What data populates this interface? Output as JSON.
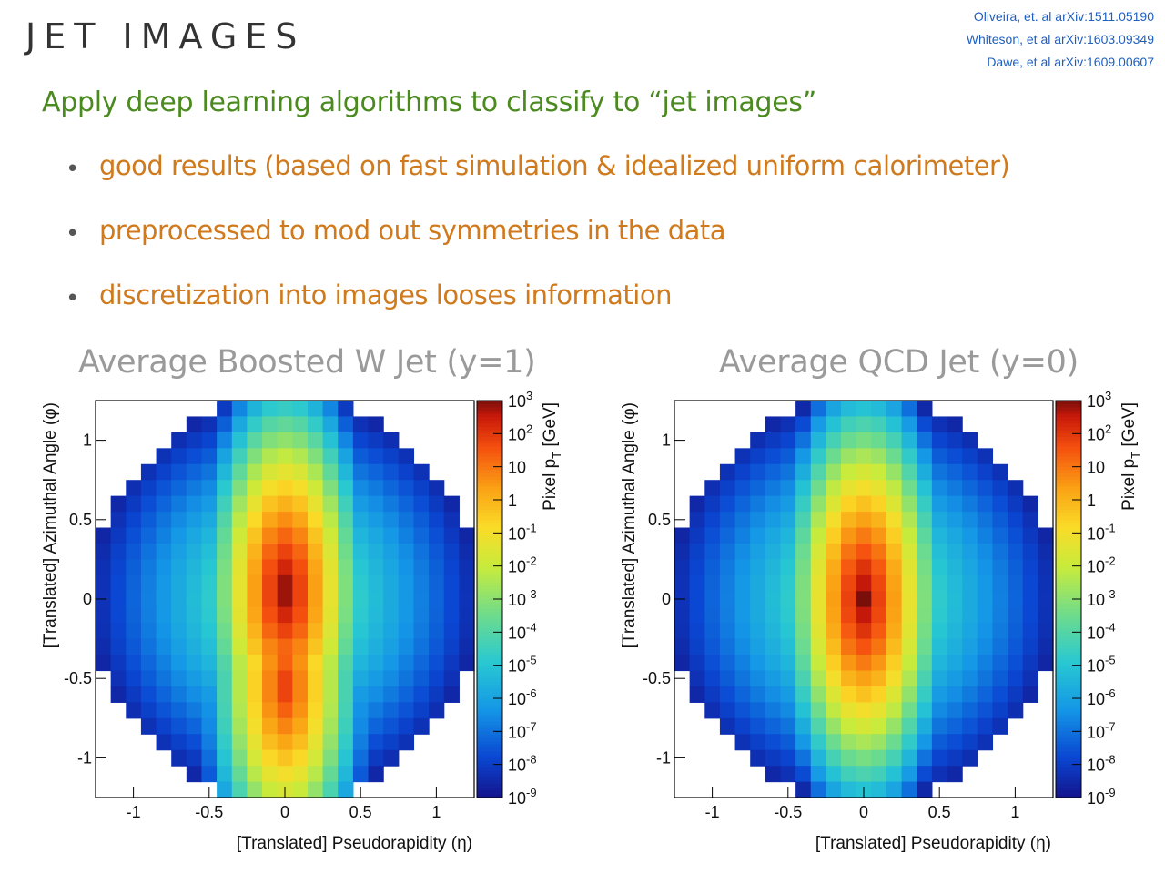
{
  "slide": {
    "title": "JET IMAGES",
    "references": [
      "Oliveira, et. al arXiv:1511.05190",
      "Whiteson, et al arXiv:1603.09349",
      "Dawe, et al arXiv:1609.00607"
    ],
    "headline": "Apply deep learning algorithms to classify to “jet images”",
    "bullets": [
      "good results (based on fast simulation & idealized uniform calorimeter)",
      "preprocessed to mod out symmetries in the data",
      "discretization into images looses information"
    ],
    "bullet_symbol": "•",
    "colors": {
      "headline": "#4a8a1e",
      "bullets": "#d07a1e",
      "references": "#1f5fbf",
      "panel_titles": "#9a9a9a"
    }
  },
  "chart_data": [
    {
      "type": "heatmap",
      "title": "Average Boosted W Jet (y=1)",
      "xlabel": "[Translated] Pseudorapidity (η)",
      "ylabel": "[Translated] Azimuthal Angle (φ)",
      "xlim": [
        -1.25,
        1.25
      ],
      "ylim": [
        -1.25,
        1.25
      ],
      "x_ticks": [
        "-1",
        "-0.5",
        "0",
        "0.5",
        "1"
      ],
      "y_ticks": [
        "1",
        "0.5",
        "0",
        "-0.5",
        "-1"
      ],
      "grid": false,
      "color_scale": "log",
      "colorbar_label": "Pixel p_T [GeV]",
      "colorbar_range": [
        1e-09,
        1000.0
      ],
      "colorbar_ticks": [
        "10^3",
        "10^2",
        "10",
        "1",
        "10^-1",
        "10^-2",
        "10^-3",
        "10^-4",
        "10^-5",
        "10^-6",
        "10^-7",
        "10^-8",
        "10^-9"
      ],
      "pixels": 25,
      "acceptance_radius": 1.25,
      "hotspots": [
        {
          "eta": 0.0,
          "phi": 0.05,
          "log10_pt": 3.0
        },
        {
          "eta": 0.0,
          "phi": -0.55,
          "log10_pt": 2.0
        }
      ],
      "edge_log10_pt": -8.5
    },
    {
      "type": "heatmap",
      "title": "Average QCD Jet (y=0)",
      "xlabel": "[Translated] Pseudorapidity (η)",
      "ylabel": "[Translated] Azimuthal Angle (φ)",
      "xlim": [
        -1.25,
        1.25
      ],
      "ylim": [
        -1.25,
        1.25
      ],
      "x_ticks": [
        "-1",
        "-0.5",
        "0",
        "0.5",
        "1"
      ],
      "y_ticks": [
        "1",
        "0.5",
        "0",
        "-0.5",
        "-1"
      ],
      "grid": false,
      "color_scale": "log",
      "colorbar_label": "Pixel p_T [GeV]",
      "colorbar_range": [
        1e-09,
        1000.0
      ],
      "colorbar_ticks": [
        "10^3",
        "10^2",
        "10",
        "1",
        "10^-1",
        "10^-2",
        "10^-3",
        "10^-4",
        "10^-5",
        "10^-6",
        "10^-7",
        "10^-8",
        "10^-9"
      ],
      "pixels": 25,
      "acceptance_radius": 1.25,
      "hotspots": [
        {
          "eta": 0.0,
          "phi": 0.0,
          "log10_pt": 3.0
        }
      ],
      "edge_log10_pt": -8.5
    }
  ]
}
